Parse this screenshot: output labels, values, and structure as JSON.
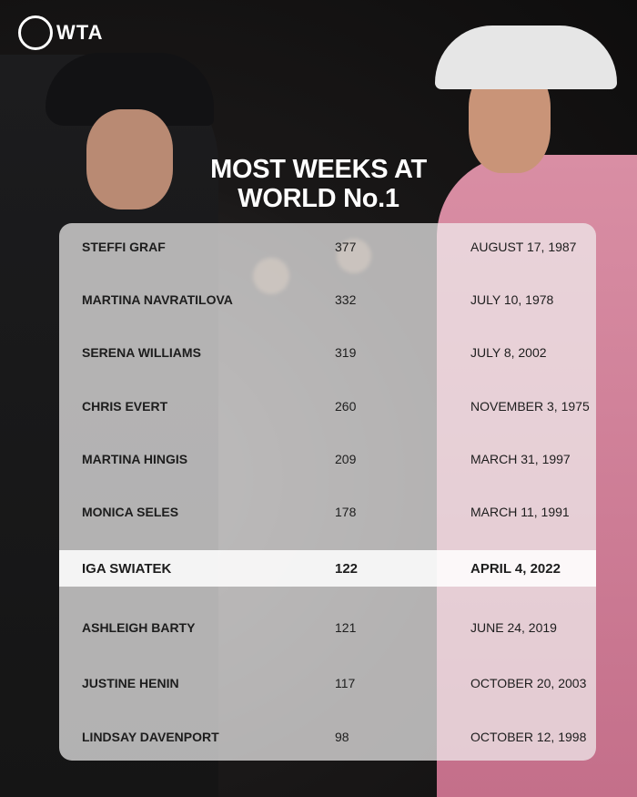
{
  "brand": {
    "logo_text": "WTA"
  },
  "title": {
    "line1": "MOST WEEKS AT",
    "line2": "WORLD No.1"
  },
  "table": {
    "rows": [
      {
        "name": "STEFFI GRAF",
        "weeks": "377",
        "first_date": "AUGUST 17, 1987",
        "highlight": false
      },
      {
        "name": "MARTINA NAVRATILOVA",
        "weeks": "332",
        "first_date": "JULY 10, 1978",
        "highlight": false
      },
      {
        "name": "SERENA WILLIAMS",
        "weeks": "319",
        "first_date": "JULY 8, 2002",
        "highlight": false
      },
      {
        "name": "CHRIS EVERT",
        "weeks": "260",
        "first_date": "NOVEMBER 3, 1975",
        "highlight": false
      },
      {
        "name": "MARTINA HINGIS",
        "weeks": "209",
        "first_date": "MARCH 31, 1997",
        "highlight": false
      },
      {
        "name": "MONICA SELES",
        "weeks": "178",
        "first_date": "MARCH 11, 1991",
        "highlight": false
      },
      {
        "name": "IGA SWIATEK",
        "weeks": "122",
        "first_date": "APRIL 4, 2022",
        "highlight": true
      },
      {
        "name": "ASHLEIGH BARTY",
        "weeks": "121",
        "first_date": "JUNE 24, 2019",
        "highlight": false
      },
      {
        "name": "JUSTINE HENIN",
        "weeks": "117",
        "first_date": "OCTOBER 20, 2003",
        "highlight": false
      },
      {
        "name": "LINDSAY DAVENPORT",
        "weeks": "98",
        "first_date": "OCTOBER 12, 1998",
        "highlight": false
      }
    ]
  }
}
